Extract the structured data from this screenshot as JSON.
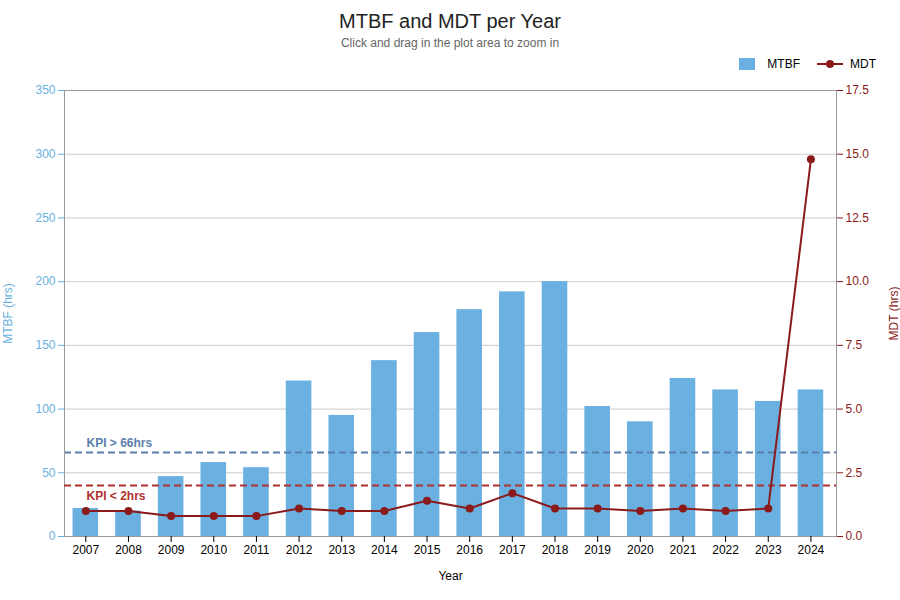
{
  "chart_data": {
    "type": "bar",
    "title": "MTBF and MDT per Year",
    "subtitle": "Click and drag in the plot area to zoom in",
    "xlabel": "Year",
    "ylabel": "MTBF (hrs)",
    "y2label": "MDT (hrs)",
    "x": [
      2007,
      2008,
      2009,
      2010,
      2011,
      2012,
      2013,
      2014,
      2015,
      2016,
      2017,
      2018,
      2019,
      2020,
      2021,
      2022,
      2023,
      2024
    ],
    "series": [
      {
        "name": "MTBF",
        "type": "bar",
        "color": "#6ab0e0",
        "values": [
          22,
          20,
          47,
          58,
          54,
          122,
          95,
          138,
          160,
          178,
          192,
          200,
          102,
          90,
          124,
          115,
          106,
          115
        ]
      },
      {
        "name": "MDT",
        "type": "line",
        "axis": "y2",
        "color": "#8b1a1a",
        "marker": "circle",
        "line_style": "solid",
        "values": [
          1.0,
          1.0,
          0.8,
          0.8,
          0.8,
          1.1,
          1.0,
          1.0,
          1.4,
          1.1,
          1.7,
          1.1,
          1.1,
          1.0,
          1.1,
          1.0,
          1.1,
          14.8
        ]
      }
    ],
    "xlim": [
      2006.5,
      2024.6
    ],
    "xticks": [
      2007,
      2008,
      2009,
      2010,
      2011,
      2012,
      2013,
      2014,
      2015,
      2016,
      2017,
      2018,
      2019,
      2020,
      2021,
      2022,
      2023,
      2024
    ],
    "ylim": [
      0,
      350
    ],
    "yticks": [
      0,
      50,
      100,
      150,
      200,
      250,
      300,
      350
    ],
    "y2lim": [
      0,
      17.5
    ],
    "y2ticks": [
      {
        "value": 0,
        "label": "0.0"
      },
      2.5,
      {
        "value": 5,
        "label": "5.0"
      },
      7.5,
      {
        "value": 10,
        "label": "10.0"
      },
      12.5,
      {
        "value": 15,
        "label": "15.0"
      },
      17.5
    ],
    "grid": true,
    "legend": "upper right",
    "annotations": [
      {
        "type": "hline",
        "y": 66,
        "axis": "y",
        "text": "KPI > 66hrs",
        "color": "#5b7fad",
        "line_style": "dashed"
      },
      {
        "type": "hline",
        "y": 2,
        "axis": "y2",
        "text": "KPI < 2hrs",
        "color": "#b03030",
        "line_style": "dashed"
      }
    ]
  }
}
